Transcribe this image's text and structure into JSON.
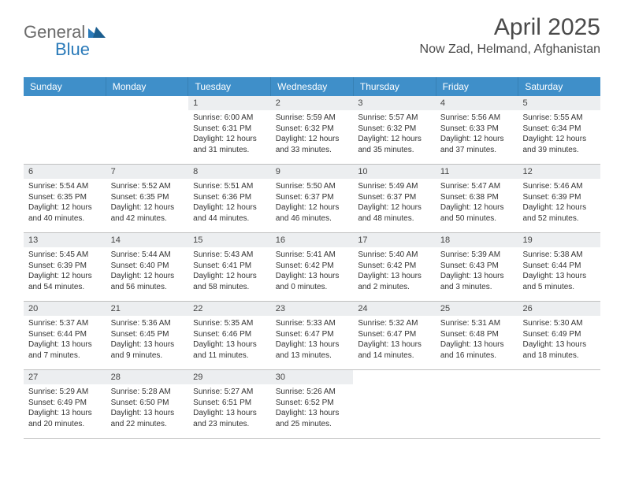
{
  "brand": {
    "general": "General",
    "blue": "Blue"
  },
  "title": "April 2025",
  "location": "Now Zad, Helmand, Afghanistan",
  "colors": {
    "header_bg": "#3f8fc9",
    "header_text": "#ffffff",
    "daynum_bg": "#eceef0",
    "text": "#333333",
    "divider": "#c0c0c0",
    "logo_gray": "#6b6b6b",
    "logo_blue": "#2a7ab9"
  },
  "dayNames": [
    "Sunday",
    "Monday",
    "Tuesday",
    "Wednesday",
    "Thursday",
    "Friday",
    "Saturday"
  ],
  "weeks": [
    [
      {
        "n": "",
        "sunrise": "",
        "sunset": "",
        "daylight": ""
      },
      {
        "n": "",
        "sunrise": "",
        "sunset": "",
        "daylight": ""
      },
      {
        "n": "1",
        "sunrise": "Sunrise: 6:00 AM",
        "sunset": "Sunset: 6:31 PM",
        "daylight": "Daylight: 12 hours and 31 minutes."
      },
      {
        "n": "2",
        "sunrise": "Sunrise: 5:59 AM",
        "sunset": "Sunset: 6:32 PM",
        "daylight": "Daylight: 12 hours and 33 minutes."
      },
      {
        "n": "3",
        "sunrise": "Sunrise: 5:57 AM",
        "sunset": "Sunset: 6:32 PM",
        "daylight": "Daylight: 12 hours and 35 minutes."
      },
      {
        "n": "4",
        "sunrise": "Sunrise: 5:56 AM",
        "sunset": "Sunset: 6:33 PM",
        "daylight": "Daylight: 12 hours and 37 minutes."
      },
      {
        "n": "5",
        "sunrise": "Sunrise: 5:55 AM",
        "sunset": "Sunset: 6:34 PM",
        "daylight": "Daylight: 12 hours and 39 minutes."
      }
    ],
    [
      {
        "n": "6",
        "sunrise": "Sunrise: 5:54 AM",
        "sunset": "Sunset: 6:35 PM",
        "daylight": "Daylight: 12 hours and 40 minutes."
      },
      {
        "n": "7",
        "sunrise": "Sunrise: 5:52 AM",
        "sunset": "Sunset: 6:35 PM",
        "daylight": "Daylight: 12 hours and 42 minutes."
      },
      {
        "n": "8",
        "sunrise": "Sunrise: 5:51 AM",
        "sunset": "Sunset: 6:36 PM",
        "daylight": "Daylight: 12 hours and 44 minutes."
      },
      {
        "n": "9",
        "sunrise": "Sunrise: 5:50 AM",
        "sunset": "Sunset: 6:37 PM",
        "daylight": "Daylight: 12 hours and 46 minutes."
      },
      {
        "n": "10",
        "sunrise": "Sunrise: 5:49 AM",
        "sunset": "Sunset: 6:37 PM",
        "daylight": "Daylight: 12 hours and 48 minutes."
      },
      {
        "n": "11",
        "sunrise": "Sunrise: 5:47 AM",
        "sunset": "Sunset: 6:38 PM",
        "daylight": "Daylight: 12 hours and 50 minutes."
      },
      {
        "n": "12",
        "sunrise": "Sunrise: 5:46 AM",
        "sunset": "Sunset: 6:39 PM",
        "daylight": "Daylight: 12 hours and 52 minutes."
      }
    ],
    [
      {
        "n": "13",
        "sunrise": "Sunrise: 5:45 AM",
        "sunset": "Sunset: 6:39 PM",
        "daylight": "Daylight: 12 hours and 54 minutes."
      },
      {
        "n": "14",
        "sunrise": "Sunrise: 5:44 AM",
        "sunset": "Sunset: 6:40 PM",
        "daylight": "Daylight: 12 hours and 56 minutes."
      },
      {
        "n": "15",
        "sunrise": "Sunrise: 5:43 AM",
        "sunset": "Sunset: 6:41 PM",
        "daylight": "Daylight: 12 hours and 58 minutes."
      },
      {
        "n": "16",
        "sunrise": "Sunrise: 5:41 AM",
        "sunset": "Sunset: 6:42 PM",
        "daylight": "Daylight: 13 hours and 0 minutes."
      },
      {
        "n": "17",
        "sunrise": "Sunrise: 5:40 AM",
        "sunset": "Sunset: 6:42 PM",
        "daylight": "Daylight: 13 hours and 2 minutes."
      },
      {
        "n": "18",
        "sunrise": "Sunrise: 5:39 AM",
        "sunset": "Sunset: 6:43 PM",
        "daylight": "Daylight: 13 hours and 3 minutes."
      },
      {
        "n": "19",
        "sunrise": "Sunrise: 5:38 AM",
        "sunset": "Sunset: 6:44 PM",
        "daylight": "Daylight: 13 hours and 5 minutes."
      }
    ],
    [
      {
        "n": "20",
        "sunrise": "Sunrise: 5:37 AM",
        "sunset": "Sunset: 6:44 PM",
        "daylight": "Daylight: 13 hours and 7 minutes."
      },
      {
        "n": "21",
        "sunrise": "Sunrise: 5:36 AM",
        "sunset": "Sunset: 6:45 PM",
        "daylight": "Daylight: 13 hours and 9 minutes."
      },
      {
        "n": "22",
        "sunrise": "Sunrise: 5:35 AM",
        "sunset": "Sunset: 6:46 PM",
        "daylight": "Daylight: 13 hours and 11 minutes."
      },
      {
        "n": "23",
        "sunrise": "Sunrise: 5:33 AM",
        "sunset": "Sunset: 6:47 PM",
        "daylight": "Daylight: 13 hours and 13 minutes."
      },
      {
        "n": "24",
        "sunrise": "Sunrise: 5:32 AM",
        "sunset": "Sunset: 6:47 PM",
        "daylight": "Daylight: 13 hours and 14 minutes."
      },
      {
        "n": "25",
        "sunrise": "Sunrise: 5:31 AM",
        "sunset": "Sunset: 6:48 PM",
        "daylight": "Daylight: 13 hours and 16 minutes."
      },
      {
        "n": "26",
        "sunrise": "Sunrise: 5:30 AM",
        "sunset": "Sunset: 6:49 PM",
        "daylight": "Daylight: 13 hours and 18 minutes."
      }
    ],
    [
      {
        "n": "27",
        "sunrise": "Sunrise: 5:29 AM",
        "sunset": "Sunset: 6:49 PM",
        "daylight": "Daylight: 13 hours and 20 minutes."
      },
      {
        "n": "28",
        "sunrise": "Sunrise: 5:28 AM",
        "sunset": "Sunset: 6:50 PM",
        "daylight": "Daylight: 13 hours and 22 minutes."
      },
      {
        "n": "29",
        "sunrise": "Sunrise: 5:27 AM",
        "sunset": "Sunset: 6:51 PM",
        "daylight": "Daylight: 13 hours and 23 minutes."
      },
      {
        "n": "30",
        "sunrise": "Sunrise: 5:26 AM",
        "sunset": "Sunset: 6:52 PM",
        "daylight": "Daylight: 13 hours and 25 minutes."
      },
      {
        "n": "",
        "sunrise": "",
        "sunset": "",
        "daylight": ""
      },
      {
        "n": "",
        "sunrise": "",
        "sunset": "",
        "daylight": ""
      },
      {
        "n": "",
        "sunrise": "",
        "sunset": "",
        "daylight": ""
      }
    ]
  ]
}
